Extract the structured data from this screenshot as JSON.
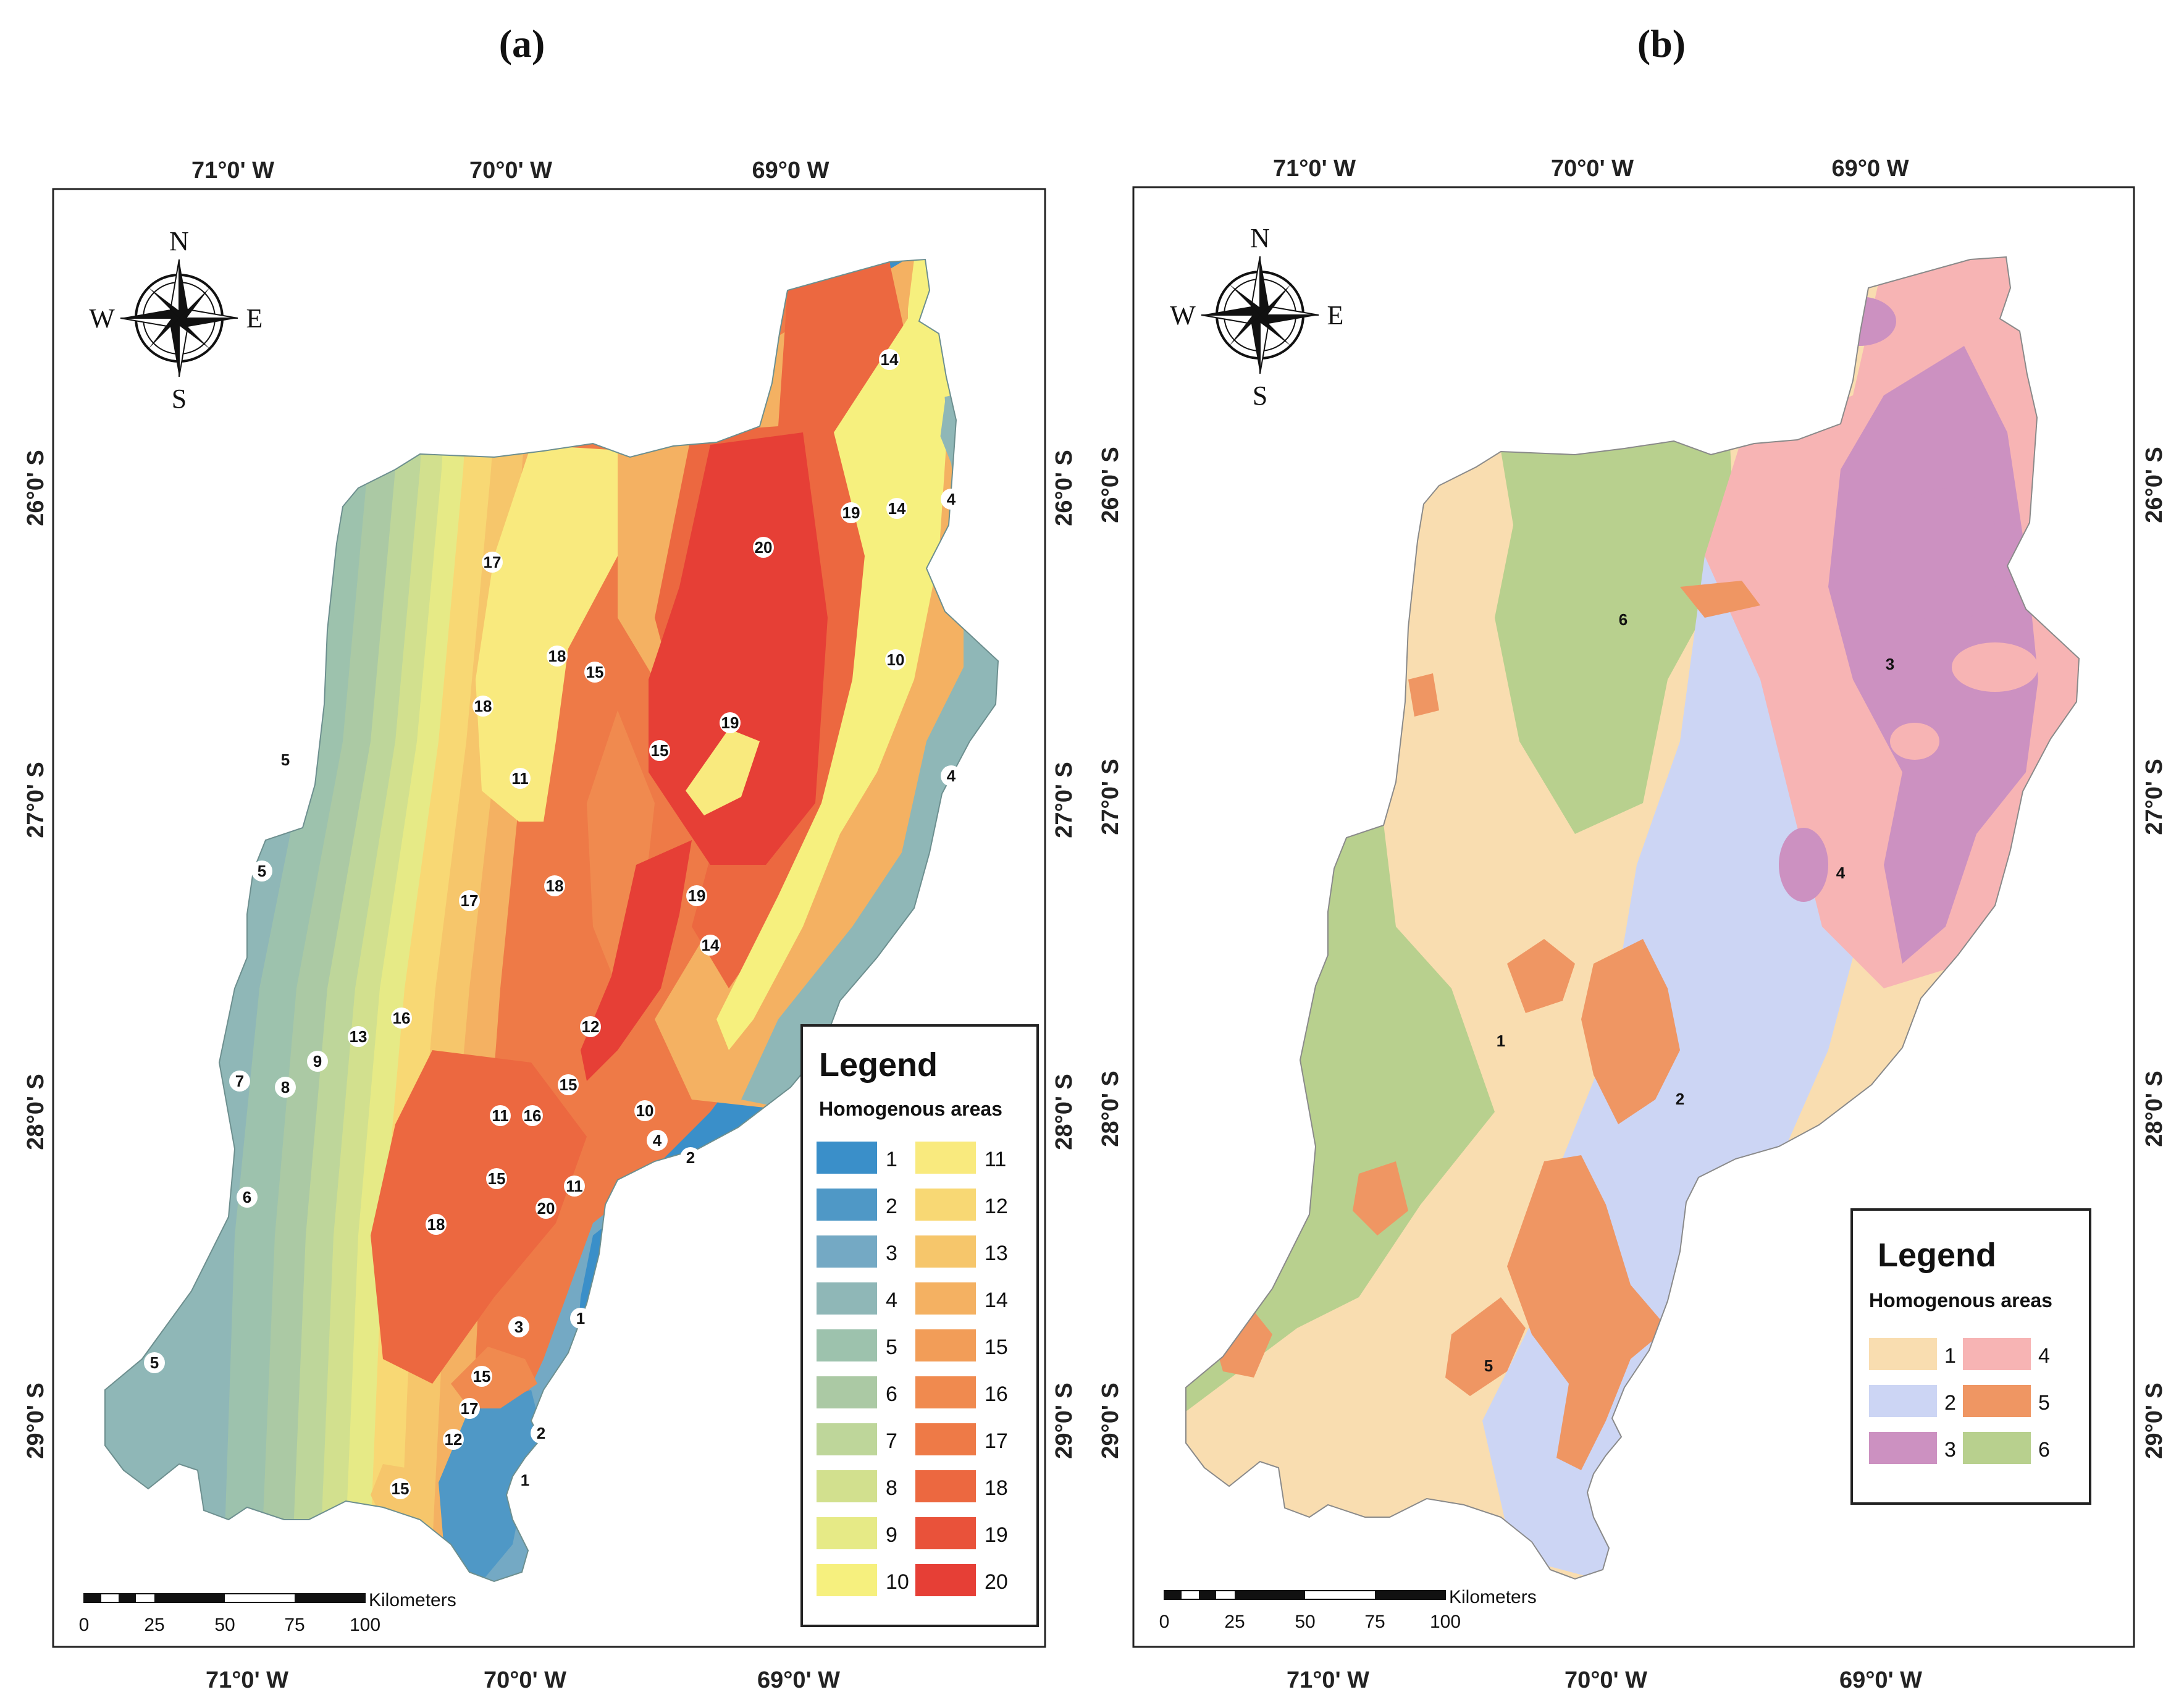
{
  "panel_a": {
    "title": "(a)",
    "lon_top": [
      "71°0' W",
      "70°0' W",
      "69°0 W"
    ],
    "lon_bottom": [
      "71°0' W",
      "70°0' W",
      "69°0' W"
    ],
    "lat_left": [
      "26°0' S",
      "27°0' S",
      "28°0' S",
      "29°0' S"
    ],
    "lat_right": [
      "26°0' S",
      "27°0' S",
      "28°0' S",
      "29°0' S"
    ],
    "compass": {
      "n": "N",
      "s": "S",
      "e": "E",
      "w": "W"
    },
    "scalebar": {
      "unit": "Kilometers",
      "ticks": [
        "0",
        "25",
        "50",
        "75",
        "100"
      ]
    },
    "legend": {
      "title": "Legend",
      "subtitle": "Homogenous areas",
      "items": [
        {
          "label": "1",
          "color": "#3a8fc9"
        },
        {
          "label": "2",
          "color": "#4f98c6"
        },
        {
          "label": "3",
          "color": "#74a9c4"
        },
        {
          "label": "4",
          "color": "#8fb7b7"
        },
        {
          "label": "5",
          "color": "#9dc2ad"
        },
        {
          "label": "6",
          "color": "#abc9a4"
        },
        {
          "label": "7",
          "color": "#bed69a"
        },
        {
          "label": "8",
          "color": "#d2e08e"
        },
        {
          "label": "9",
          "color": "#e6ea86"
        },
        {
          "label": "10",
          "color": "#f6f07e"
        },
        {
          "label": "11",
          "color": "#f9ea7e"
        },
        {
          "label": "12",
          "color": "#f8d874"
        },
        {
          "label": "13",
          "color": "#f6c66b"
        },
        {
          "label": "14",
          "color": "#f4b162"
        },
        {
          "label": "15",
          "color": "#f29d58"
        },
        {
          "label": "16",
          "color": "#f08a4f"
        },
        {
          "label": "17",
          "color": "#ee7a47"
        },
        {
          "label": "18",
          "color": "#ec6840"
        },
        {
          "label": "19",
          "color": "#e9523a"
        },
        {
          "label": "20",
          "color": "#e63f36"
        }
      ]
    },
    "zone_labels": [
      "14",
      "19",
      "14",
      "4",
      "20",
      "17",
      "18",
      "15",
      "10",
      "18",
      "19",
      "15",
      "5",
      "11",
      "4",
      "5",
      "17",
      "18",
      "19",
      "14",
      "12",
      "13",
      "16",
      "9",
      "7",
      "8",
      "15",
      "11",
      "16",
      "10",
      "4",
      "2",
      "15",
      "11",
      "6",
      "20",
      "18",
      "1",
      "3",
      "5",
      "15",
      "17",
      "12",
      "2",
      "1",
      "15"
    ]
  },
  "panel_b": {
    "title": "(b)",
    "lon_top": [
      "71°0' W",
      "70°0' W",
      "69°0 W"
    ],
    "lon_bottom": [
      "71°0' W",
      "70°0' W",
      "69°0' W"
    ],
    "lat_left": [
      "26°0' S",
      "27°0' S",
      "28°0' S",
      "29°0' S"
    ],
    "lat_right": [
      "26°0' S",
      "27°0' S",
      "28°0' S",
      "29°0' S"
    ],
    "compass": {
      "n": "N",
      "s": "S",
      "e": "E",
      "w": "W"
    },
    "scalebar": {
      "unit": "Kilometers",
      "ticks": [
        "0",
        "25",
        "50",
        "75",
        "100"
      ]
    },
    "legend": {
      "title": "Legend",
      "subtitle": "Homogenous areas",
      "items": [
        {
          "label": "1",
          "color": "#f9ddb0"
        },
        {
          "label": "4",
          "color": "#f7b4b4"
        },
        {
          "label": "2",
          "color": "#ccd5f4"
        },
        {
          "label": "5",
          "color": "#ef9663"
        },
        {
          "label": "3",
          "color": "#cc91c1"
        },
        {
          "label": "6",
          "color": "#b8d08e"
        }
      ]
    },
    "zone_labels": [
      "6",
      "3",
      "4",
      "1",
      "2",
      "5"
    ]
  }
}
